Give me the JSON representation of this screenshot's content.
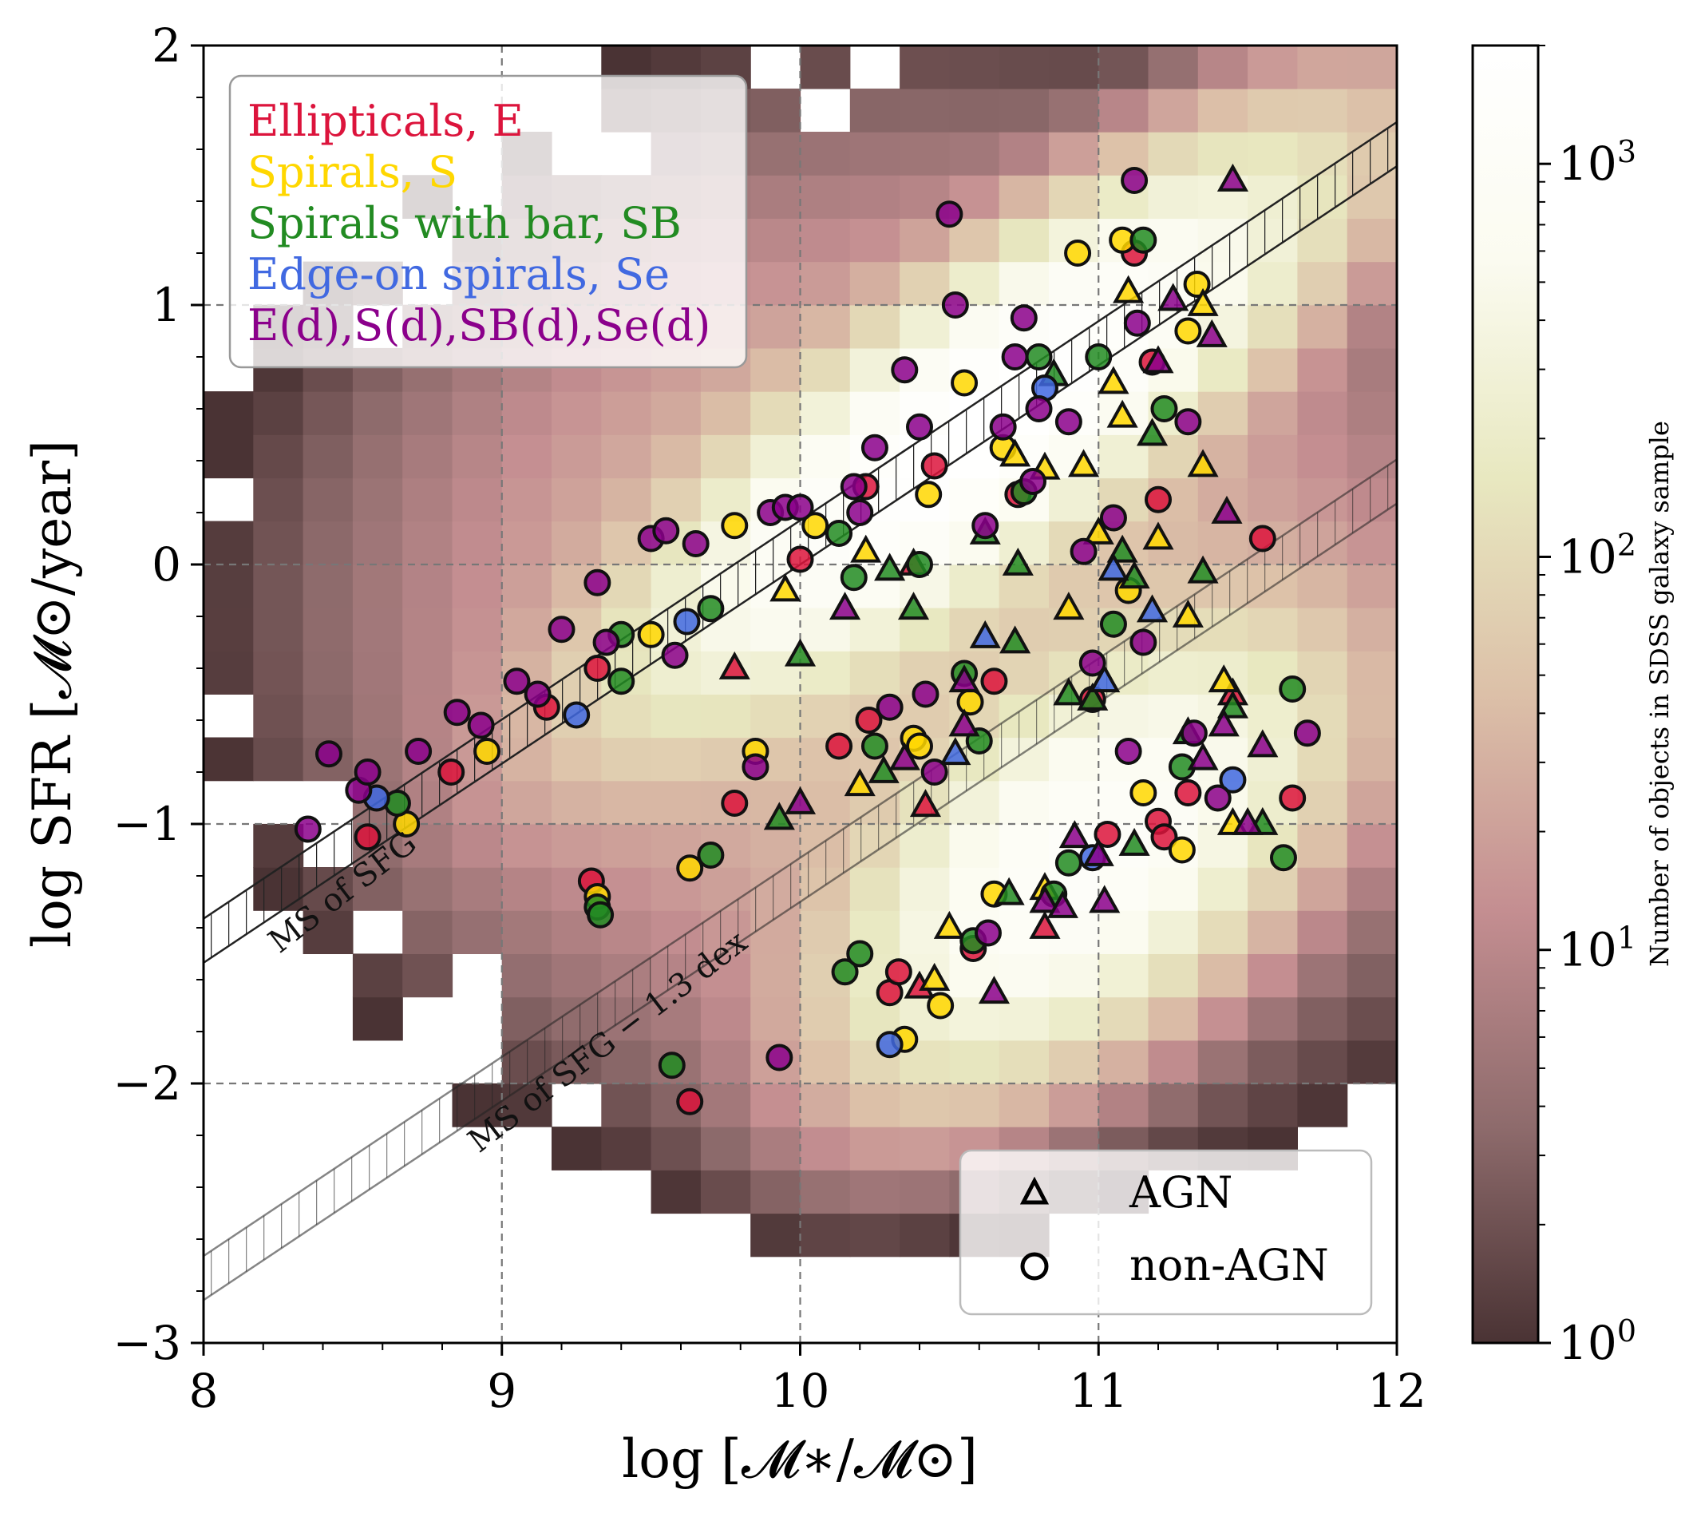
{
  "chart_data": {
    "type": "scatter",
    "title": "",
    "xlabel": "log [𝓜∗/𝓜⊙]",
    "ylabel": "log SFR [𝓜⊙/year]",
    "xlim": [
      8,
      12
    ],
    "ylim": [
      -3,
      2
    ],
    "xticks": [
      "8",
      "9",
      "10",
      "11",
      "12"
    ],
    "yticks": [
      "−3",
      "−2",
      "−1",
      "0",
      "1",
      "2"
    ],
    "grid": "dashed at major ticks",
    "colorbar": {
      "label": "Number of objects in SDSS galaxy sample",
      "scale": "log",
      "range": [
        1,
        2000
      ],
      "ticks": [
        "10^0",
        "10^1",
        "10^2",
        "10^3"
      ],
      "colors": [
        "#4a3334",
        "#8e6b6c",
        "#c48e91",
        "#dcc0a8",
        "#e8e8c0",
        "#fbfbf0",
        "#ffffff"
      ]
    },
    "lines": [
      {
        "label": "MS of SFG",
        "x": [
          8,
          12
        ],
        "y": [
          -1.45,
          1.62
        ]
      },
      {
        "label": "MS of SFG − 1.3 dex",
        "x": [
          8,
          12
        ],
        "y": [
          -2.75,
          0.32
        ]
      }
    ],
    "class_legend": [
      {
        "label": "Ellipticals, E",
        "color": "#dc143c"
      },
      {
        "label": "Spirals, S",
        "color": "#ffd700"
      },
      {
        "label": "Spirals with bar, SB",
        "color": "#228b22"
      },
      {
        "label": "Edge-on spirals, Se",
        "color": "#4169e1"
      },
      {
        "label": "E(d),S(d),SB(d),Se(d)",
        "color": "#8b008b"
      }
    ],
    "marker_legend": [
      {
        "label": "AGN",
        "marker": "triangle"
      },
      {
        "label": "non-AGN",
        "marker": "circle"
      }
    ],
    "histogram": [
      {
        "x": 9.5,
        "y": -1.3,
        "n": 50
      }
    ],
    "series": [
      {
        "name": "Ellipticals, E",
        "color": "#dc143c",
        "points": [
          [
            8.55,
            -1.05,
            "o"
          ],
          [
            8.83,
            -0.8,
            "o"
          ],
          [
            9.15,
            -0.55,
            "o"
          ],
          [
            9.32,
            -0.4,
            "o"
          ],
          [
            9.3,
            -1.22,
            "o"
          ],
          [
            9.63,
            -2.07,
            "o"
          ],
          [
            9.78,
            -0.92,
            "o"
          ],
          [
            10.0,
            0.02,
            "o"
          ],
          [
            10.13,
            -0.7,
            "o"
          ],
          [
            10.22,
            0.3,
            "o"
          ],
          [
            10.23,
            -0.6,
            "o"
          ],
          [
            10.3,
            -1.65,
            "o"
          ],
          [
            10.33,
            -1.57,
            "o"
          ],
          [
            10.4,
            -1.63,
            "^"
          ],
          [
            10.42,
            -0.93,
            "^"
          ],
          [
            10.45,
            0.38,
            "o"
          ],
          [
            10.58,
            -1.48,
            "o"
          ],
          [
            10.65,
            -0.45,
            "o"
          ],
          [
            10.73,
            0.27,
            "o"
          ],
          [
            10.82,
            -1.4,
            "^"
          ],
          [
            10.98,
            -0.52,
            "o"
          ],
          [
            11.03,
            -1.04,
            "o"
          ],
          [
            11.12,
            1.2,
            "o"
          ],
          [
            11.2,
            -0.99,
            "o"
          ],
          [
            11.2,
            0.25,
            "o"
          ],
          [
            11.18,
            0.78,
            "o"
          ],
          [
            11.22,
            -1.05,
            "o"
          ],
          [
            11.3,
            -0.88,
            "o"
          ],
          [
            11.45,
            -0.5,
            "^"
          ],
          [
            11.65,
            -0.9,
            "o"
          ],
          [
            11.55,
            0.1,
            "o"
          ],
          [
            9.78,
            -0.4,
            "^"
          ],
          [
            10.38,
            0.0,
            "^"
          ]
        ]
      },
      {
        "name": "Spirals, S",
        "color": "#ffd700",
        "points": [
          [
            8.68,
            -1.0,
            "o"
          ],
          [
            8.95,
            -0.72,
            "o"
          ],
          [
            9.5,
            -0.27,
            "o"
          ],
          [
            9.63,
            -1.17,
            "o"
          ],
          [
            9.78,
            0.15,
            "o"
          ],
          [
            9.85,
            -0.72,
            "o"
          ],
          [
            9.95,
            -0.1,
            "^"
          ],
          [
            10.05,
            0.15,
            "o"
          ],
          [
            10.22,
            0.05,
            "^"
          ],
          [
            10.2,
            -0.85,
            "^"
          ],
          [
            10.35,
            -1.83,
            "o"
          ],
          [
            10.38,
            -0.67,
            "o"
          ],
          [
            10.43,
            0.27,
            "o"
          ],
          [
            10.45,
            -1.6,
            "^"
          ],
          [
            10.47,
            -1.7,
            "o"
          ],
          [
            10.5,
            -1.4,
            "^"
          ],
          [
            10.55,
            0.7,
            "o"
          ],
          [
            10.57,
            -0.53,
            "o"
          ],
          [
            10.65,
            -1.27,
            "o"
          ],
          [
            10.68,
            0.45,
            "o"
          ],
          [
            10.82,
            -1.25,
            "^"
          ],
          [
            10.82,
            0.37,
            "^"
          ],
          [
            10.9,
            -0.17,
            "^"
          ],
          [
            10.93,
            1.2,
            "o"
          ],
          [
            10.95,
            0.38,
            "^"
          ],
          [
            11.0,
            0.12,
            "^"
          ],
          [
            11.05,
            0.7,
            "^"
          ],
          [
            11.08,
            1.25,
            "o"
          ],
          [
            11.1,
            1.05,
            "^"
          ],
          [
            11.1,
            -0.1,
            "o"
          ],
          [
            11.15,
            -0.88,
            "o"
          ],
          [
            11.2,
            0.1,
            "^"
          ],
          [
            11.28,
            -1.1,
            "o"
          ],
          [
            11.3,
            0.9,
            "o"
          ],
          [
            11.33,
            1.08,
            "o"
          ],
          [
            11.35,
            1.0,
            "^"
          ],
          [
            11.35,
            0.38,
            "^"
          ],
          [
            11.45,
            -1.0,
            "^"
          ],
          [
            11.42,
            -0.45,
            "^"
          ],
          [
            9.32,
            -1.28,
            "o"
          ],
          [
            11.08,
            0.57,
            "^"
          ],
          [
            11.3,
            -0.2,
            "^"
          ],
          [
            10.72,
            0.42,
            "^"
          ],
          [
            10.4,
            -0.7,
            "o"
          ]
        ]
      },
      {
        "name": "Spirals with bar, SB",
        "color": "#228b22",
        "points": [
          [
            8.65,
            -0.92,
            "o"
          ],
          [
            9.32,
            -1.32,
            "o"
          ],
          [
            9.33,
            -1.35,
            "o"
          ],
          [
            9.4,
            -0.27,
            "o"
          ],
          [
            9.4,
            -0.45,
            "o"
          ],
          [
            9.57,
            -1.93,
            "o"
          ],
          [
            9.7,
            -1.12,
            "o"
          ],
          [
            9.7,
            -0.17,
            "o"
          ],
          [
            9.93,
            -0.98,
            "^"
          ],
          [
            10.0,
            -0.35,
            "^"
          ],
          [
            10.15,
            -1.57,
            "o"
          ],
          [
            10.2,
            -1.5,
            "o"
          ],
          [
            10.13,
            0.12,
            "o"
          ],
          [
            10.18,
            -0.05,
            "o"
          ],
          [
            10.25,
            -0.7,
            "o"
          ],
          [
            10.28,
            -0.8,
            "^"
          ],
          [
            10.3,
            -0.02,
            "^"
          ],
          [
            10.38,
            -0.17,
            "^"
          ],
          [
            10.4,
            0.0,
            "o"
          ],
          [
            10.55,
            -0.42,
            "o"
          ],
          [
            10.58,
            -1.45,
            "o"
          ],
          [
            10.6,
            -0.68,
            "o"
          ],
          [
            10.62,
            0.12,
            "^"
          ],
          [
            10.7,
            -1.27,
            "^"
          ],
          [
            10.72,
            -0.3,
            "^"
          ],
          [
            10.73,
            0.0,
            "^"
          ],
          [
            10.8,
            0.8,
            "o"
          ],
          [
            10.85,
            0.73,
            "^"
          ],
          [
            10.85,
            -1.27,
            "o"
          ],
          [
            10.9,
            -1.15,
            "o"
          ],
          [
            10.9,
            -0.5,
            "^"
          ],
          [
            10.98,
            -0.52,
            "^"
          ],
          [
            11.0,
            0.8,
            "o"
          ],
          [
            11.05,
            -0.23,
            "o"
          ],
          [
            11.08,
            0.05,
            "^"
          ],
          [
            11.12,
            -0.05,
            "^"
          ],
          [
            11.12,
            -1.08,
            "^"
          ],
          [
            11.15,
            1.25,
            "o"
          ],
          [
            11.18,
            0.5,
            "^"
          ],
          [
            11.22,
            0.6,
            "o"
          ],
          [
            11.28,
            -0.78,
            "o"
          ],
          [
            11.3,
            -0.65,
            "^"
          ],
          [
            11.35,
            -0.03,
            "^"
          ],
          [
            11.45,
            -0.55,
            "^"
          ],
          [
            11.55,
            -1.0,
            "^"
          ],
          [
            11.62,
            -1.13,
            "o"
          ],
          [
            11.65,
            -0.48,
            "o"
          ],
          [
            10.75,
            0.28,
            "o"
          ]
        ]
      },
      {
        "name": "Edge-on spirals, Se",
        "color": "#4169e1",
        "points": [
          [
            8.58,
            -0.9,
            "o"
          ],
          [
            9.25,
            -0.58,
            "o"
          ],
          [
            9.62,
            -0.22,
            "o"
          ],
          [
            10.3,
            -1.85,
            "o"
          ],
          [
            10.52,
            -0.73,
            "^"
          ],
          [
            10.62,
            -0.28,
            "^"
          ],
          [
            10.82,
            0.68,
            "o"
          ],
          [
            10.98,
            -1.13,
            "o"
          ],
          [
            11.02,
            -0.45,
            "^"
          ],
          [
            11.05,
            -0.02,
            "^"
          ],
          [
            11.18,
            -0.18,
            "^"
          ],
          [
            11.45,
            -0.83,
            "o"
          ]
        ]
      },
      {
        "name": "E(d),S(d),SB(d),Se(d)",
        "color": "#8b008b",
        "points": [
          [
            8.35,
            -1.02,
            "o"
          ],
          [
            8.42,
            -0.73,
            "o"
          ],
          [
            8.52,
            -0.87,
            "o"
          ],
          [
            8.55,
            -0.8,
            "o"
          ],
          [
            8.72,
            -0.72,
            "o"
          ],
          [
            8.85,
            -0.57,
            "o"
          ],
          [
            8.93,
            -0.62,
            "o"
          ],
          [
            9.05,
            -0.45,
            "o"
          ],
          [
            9.12,
            -0.5,
            "o"
          ],
          [
            9.2,
            -0.25,
            "o"
          ],
          [
            9.32,
            -0.07,
            "o"
          ],
          [
            9.35,
            -0.3,
            "o"
          ],
          [
            9.5,
            0.1,
            "o"
          ],
          [
            9.55,
            0.13,
            "o"
          ],
          [
            9.58,
            -0.35,
            "o"
          ],
          [
            9.65,
            0.08,
            "o"
          ],
          [
            9.85,
            -0.78,
            "o"
          ],
          [
            9.9,
            0.2,
            "o"
          ],
          [
            9.93,
            -1.9,
            "o"
          ],
          [
            9.95,
            0.22,
            "o"
          ],
          [
            10.0,
            0.22,
            "o"
          ],
          [
            10.0,
            -0.92,
            "^"
          ],
          [
            10.15,
            -0.17,
            "^"
          ],
          [
            10.18,
            0.3,
            "o"
          ],
          [
            10.2,
            0.2,
            "o"
          ],
          [
            10.25,
            0.45,
            "o"
          ],
          [
            10.3,
            -0.55,
            "o"
          ],
          [
            10.35,
            0.75,
            "o"
          ],
          [
            10.35,
            -0.75,
            "^"
          ],
          [
            10.4,
            0.53,
            "o"
          ],
          [
            10.42,
            -0.5,
            "o"
          ],
          [
            10.45,
            -0.8,
            "o"
          ],
          [
            10.5,
            1.35,
            "o"
          ],
          [
            10.52,
            1.0,
            "o"
          ],
          [
            10.55,
            -0.62,
            "^"
          ],
          [
            10.55,
            -0.45,
            "^"
          ],
          [
            10.62,
            0.15,
            "o"
          ],
          [
            10.63,
            -1.42,
            "o"
          ],
          [
            10.65,
            -1.65,
            "^"
          ],
          [
            10.68,
            0.53,
            "o"
          ],
          [
            10.72,
            0.8,
            "o"
          ],
          [
            10.75,
            0.95,
            "o"
          ],
          [
            10.8,
            0.6,
            "o"
          ],
          [
            10.9,
            0.55,
            "o"
          ],
          [
            10.92,
            -1.05,
            "^"
          ],
          [
            10.95,
            0.05,
            "o"
          ],
          [
            10.98,
            -0.38,
            "o"
          ],
          [
            11.02,
            -1.3,
            "^"
          ],
          [
            11.05,
            0.18,
            "o"
          ],
          [
            11.1,
            -0.72,
            "o"
          ],
          [
            11.12,
            1.48,
            "o"
          ],
          [
            11.13,
            0.93,
            "o"
          ],
          [
            11.15,
            -0.3,
            "o"
          ],
          [
            11.2,
            0.78,
            "^"
          ],
          [
            11.25,
            1.02,
            "^"
          ],
          [
            11.3,
            0.55,
            "o"
          ],
          [
            11.32,
            -0.65,
            "o"
          ],
          [
            11.35,
            -0.75,
            "^"
          ],
          [
            11.38,
            0.88,
            "^"
          ],
          [
            11.4,
            -0.9,
            "o"
          ],
          [
            11.42,
            -0.62,
            "^"
          ],
          [
            11.43,
            0.2,
            "^"
          ],
          [
            11.45,
            1.48,
            "^"
          ],
          [
            11.5,
            -1.0,
            "^"
          ],
          [
            11.55,
            -0.7,
            "^"
          ],
          [
            11.7,
            -0.65,
            "o"
          ],
          [
            10.78,
            0.32,
            "o"
          ],
          [
            10.82,
            -1.3,
            "^"
          ],
          [
            10.88,
            -1.32,
            "^"
          ],
          [
            11.0,
            -1.12,
            "^"
          ]
        ]
      }
    ]
  },
  "annotations": {
    "line1": "MS of SFG",
    "line2": "MS of SFG − 1.3 dex"
  }
}
